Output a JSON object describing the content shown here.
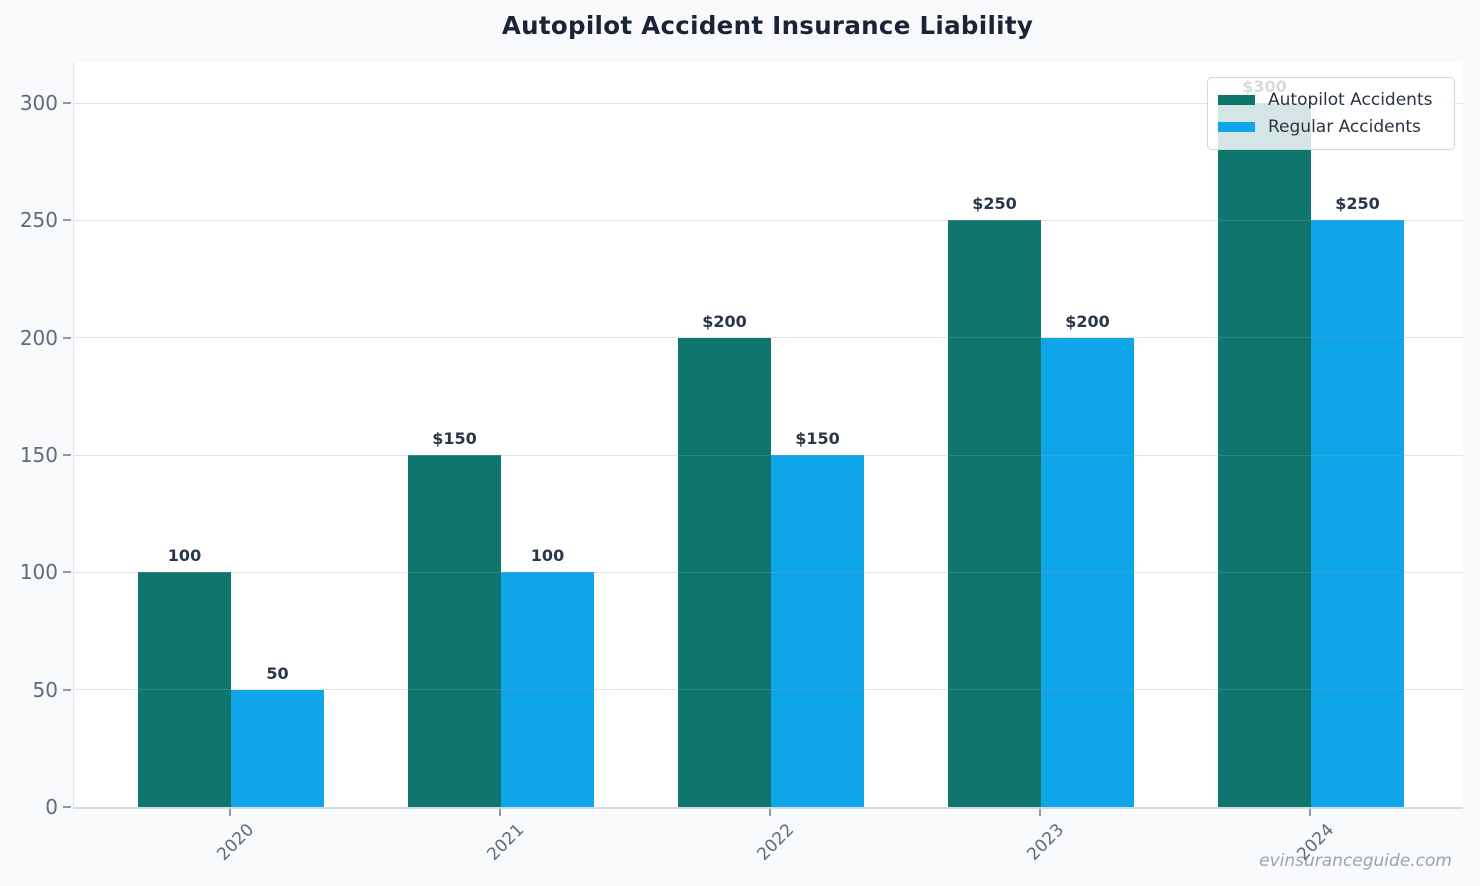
{
  "chart_data": {
    "type": "bar",
    "title": "Autopilot Accident Insurance Liability",
    "categories": [
      "2020",
      "2021",
      "2022",
      "2023",
      "2024"
    ],
    "series": [
      {
        "name": "Autopilot Accidents",
        "color": "#0f766e",
        "values": [
          100,
          150,
          200,
          250,
          300
        ],
        "labels": [
          "100",
          "$150",
          "$200",
          "$250",
          "$300"
        ]
      },
      {
        "name": "Regular Accidents",
        "color": "#0ea5e9",
        "values": [
          50,
          100,
          150,
          200,
          250
        ],
        "labels": [
          "50",
          "100",
          "$150",
          "$200",
          "$250"
        ]
      }
    ],
    "xlabel": "",
    "ylabel": "",
    "ylim": [
      0,
      300
    ],
    "yticks": [
      0,
      50,
      100,
      150,
      200,
      250,
      300
    ],
    "grid": true,
    "legend_position": "top-right"
  },
  "watermark": "evinsuranceguide.com",
  "colors": {
    "background": "#f8fafc",
    "plot_background": "#ffffff",
    "title": "#1b2437",
    "tick_label": "#5f6b80",
    "bar_label": "#2b3648",
    "grid": "#e4e9ee",
    "spine": "#d3dae2",
    "legend_border": "#cfd6de",
    "watermark": "#9aa3b0"
  }
}
